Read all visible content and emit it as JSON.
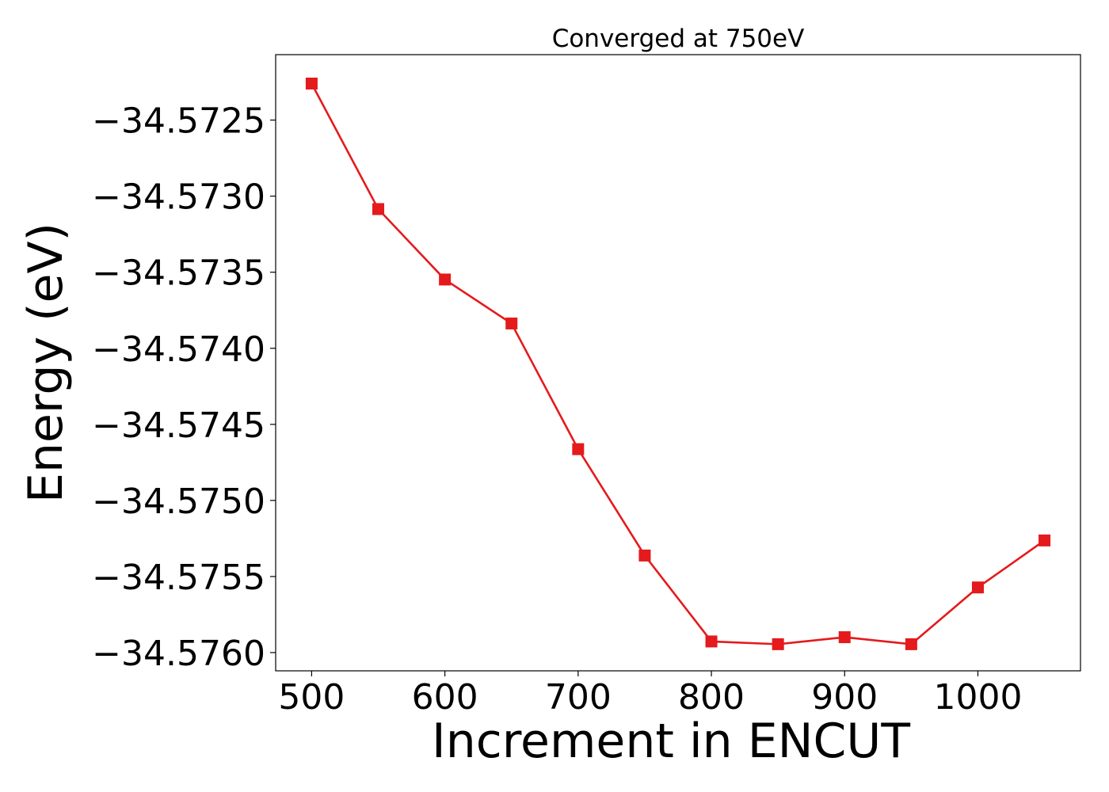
{
  "chart_data": {
    "type": "line",
    "title": "Converged at 750eV",
    "xlabel": "Increment in ENCUT",
    "ylabel": "Energy (eV)",
    "xlim": [
      473,
      1077
    ],
    "ylim": [
      -34.57612,
      -34.57207
    ],
    "xticks": [
      500,
      600,
      700,
      800,
      900,
      1000
    ],
    "xtick_labels": [
      "500",
      "600",
      "700",
      "800",
      "900",
      "1000"
    ],
    "yticks": [
      -34.5725,
      -34.573,
      -34.5735,
      -34.574,
      -34.5745,
      -34.575,
      -34.5755,
      -34.576
    ],
    "ytick_labels": [
      "−34.5725",
      "−34.5730",
      "−34.5735",
      "−34.5740",
      "−34.5745",
      "−34.5750",
      "−34.5755",
      "−34.5760"
    ],
    "grid": false,
    "series": [
      {
        "color": "#e41a1c",
        "marker": "square",
        "x": [
          500,
          550,
          600,
          650,
          700,
          750,
          800,
          850,
          900,
          950,
          1000,
          1050
        ],
        "y": [
          -34.57226,
          -34.573085,
          -34.573548,
          -34.573837,
          -34.574663,
          -34.575362,
          -34.575927,
          -34.575945,
          -34.575899,
          -34.575945,
          -34.575572,
          -34.575263
        ]
      }
    ]
  }
}
